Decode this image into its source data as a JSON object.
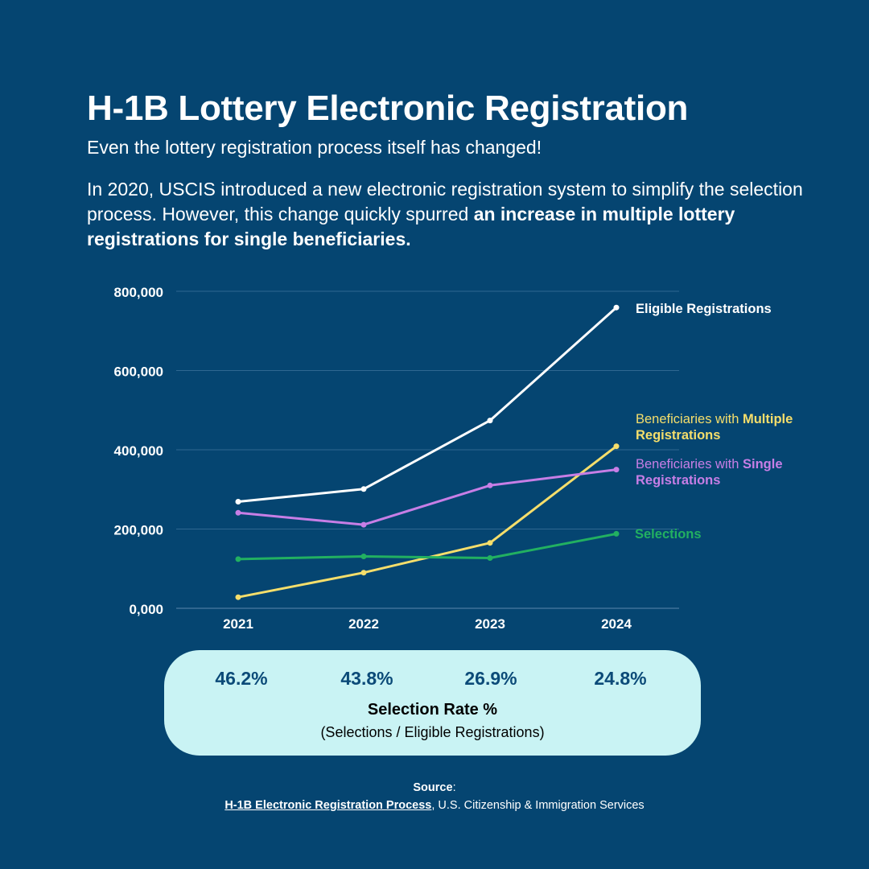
{
  "header": {
    "title": "H-1B Lottery Electronic Registration",
    "subtitle": "Even the lottery registration process itself has changed!",
    "intro_plain": "In 2020, USCIS introduced a new electronic registration system to simplify the selection process. However, this change quickly spurred ",
    "intro_bold": "an increase in multiple lottery registrations for single beneficiaries."
  },
  "chart_data": {
    "type": "line",
    "x": [
      "2021",
      "2022",
      "2023",
      "2024"
    ],
    "yticks": [
      "0,000",
      "200,000",
      "400,000",
      "600,000",
      "800,000"
    ],
    "ylim": [
      0,
      800000
    ],
    "grid": true,
    "series": [
      {
        "name": "Eligible Registrations",
        "label_plain": "",
        "label_bold": "Eligible Registrations",
        "color": "#ffffff",
        "values": [
          269000,
          301000,
          474000,
          759000
        ]
      },
      {
        "name": "Beneficiaries with Multiple Registrations",
        "label_plain": "Beneficiaries with ",
        "label_bold": "Multiple",
        "label_line2": "Registrations",
        "color": "#f5de6b",
        "values": [
          28000,
          90000,
          165000,
          409000
        ]
      },
      {
        "name": "Beneficiaries with Single Registrations",
        "label_plain": "Beneficiaries with ",
        "label_bold": "Single",
        "label_line2": "Registrations",
        "color": "#c77ee6",
        "values": [
          241000,
          211000,
          310000,
          350000
        ]
      },
      {
        "name": "Selections",
        "label_plain": "",
        "label_bold": "Selections",
        "color": "#22b061",
        "values": [
          124000,
          131000,
          127000,
          188000
        ]
      }
    ]
  },
  "selection_rate": {
    "values": [
      "46.2%",
      "43.8%",
      "26.9%",
      "24.8%"
    ],
    "title": "Selection Rate %",
    "subtitle": "(Selections / Eligible Registrations)"
  },
  "source": {
    "label": "Source",
    "link_text": "H-1B Electronic Registration Process",
    "rest": ", U.S. Citizenship & Immigration Services"
  }
}
